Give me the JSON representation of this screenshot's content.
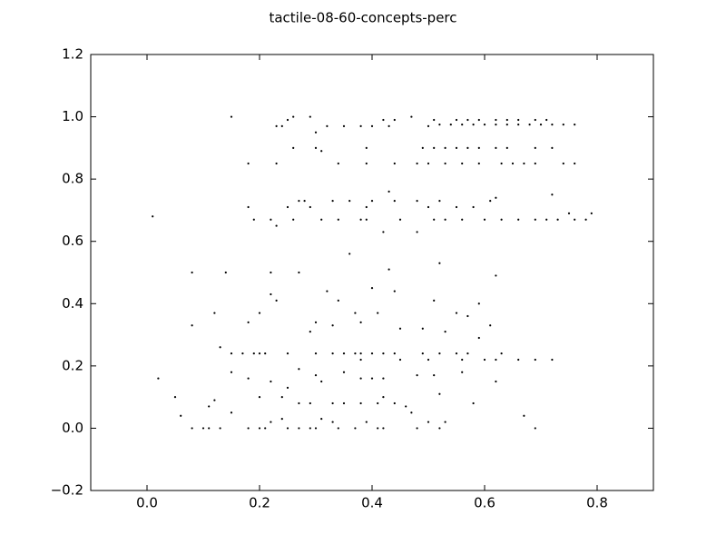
{
  "chart_data": {
    "type": "scatter",
    "title": "tactile-08-60-concepts-perc",
    "color": "#000000",
    "x": [
      0.15,
      0.23,
      0.24,
      0.25,
      0.26,
      0.29,
      0.3,
      0.32,
      0.35,
      0.38,
      0.4,
      0.42,
      0.43,
      0.44,
      0.47,
      0.5,
      0.51,
      0.52,
      0.54,
      0.56,
      0.58,
      0.6,
      0.62,
      0.64,
      0.66,
      0.68,
      0.7,
      0.72,
      0.74,
      0.76,
      0.55,
      0.57,
      0.59,
      0.62,
      0.64,
      0.66,
      0.69,
      0.71,
      0.26,
      0.3,
      0.31,
      0.39,
      0.49,
      0.51,
      0.53,
      0.55,
      0.57,
      0.59,
      0.62,
      0.64,
      0.69,
      0.72,
      0.18,
      0.23,
      0.34,
      0.39,
      0.44,
      0.48,
      0.5,
      0.53,
      0.56,
      0.59,
      0.63,
      0.65,
      0.67,
      0.69,
      0.74,
      0.76,
      0.18,
      0.25,
      0.27,
      0.28,
      0.29,
      0.33,
      0.36,
      0.39,
      0.4,
      0.43,
      0.44,
      0.48,
      0.5,
      0.52,
      0.55,
      0.58,
      0.61,
      0.62,
      0.72,
      0.75,
      0.79,
      0.01,
      0.19,
      0.22,
      0.23,
      0.26,
      0.31,
      0.34,
      0.38,
      0.39,
      0.42,
      0.45,
      0.48,
      0.51,
      0.53,
      0.56,
      0.6,
      0.63,
      0.66,
      0.69,
      0.71,
      0.73,
      0.76,
      0.78,
      0.36,
      0.52,
      0.43,
      0.62,
      0.08,
      0.14,
      0.22,
      0.27,
      0.32,
      0.4,
      0.44,
      0.22,
      0.23,
      0.34,
      0.3,
      0.37,
      0.41,
      0.51,
      0.55,
      0.59,
      0.57,
      0.12,
      0.08,
      0.2,
      0.18,
      0.45,
      0.49,
      0.53,
      0.29,
      0.33,
      0.38,
      0.61,
      0.59,
      0.13,
      0.15,
      0.17,
      0.19,
      0.2,
      0.21,
      0.25,
      0.3,
      0.33,
      0.35,
      0.37,
      0.38,
      0.4,
      0.42,
      0.44,
      0.49,
      0.52,
      0.55,
      0.57,
      0.63,
      0.38,
      0.45,
      0.5,
      0.56,
      0.6,
      0.62,
      0.66,
      0.69,
      0.72,
      0.15,
      0.18,
      0.22,
      0.25,
      0.27,
      0.3,
      0.31,
      0.35,
      0.38,
      0.4,
      0.42,
      0.48,
      0.51,
      0.56,
      0.62,
      0.02,
      0.05,
      0.12,
      0.2,
      0.24,
      0.27,
      0.29,
      0.33,
      0.35,
      0.38,
      0.41,
      0.42,
      0.44,
      0.46,
      0.52,
      0.58,
      0.11,
      0.06,
      0.08,
      0.1,
      0.11,
      0.13,
      0.15,
      0.18,
      0.2,
      0.21,
      0.22,
      0.24,
      0.25,
      0.27,
      0.29,
      0.3,
      0.31,
      0.33,
      0.34,
      0.37,
      0.39,
      0.41,
      0.42,
      0.47,
      0.48,
      0.5,
      0.52,
      0.53,
      0.67,
      0.69
    ],
    "y": [
      1.0,
      0.97,
      0.97,
      0.99,
      1.0,
      1.0,
      0.95,
      0.97,
      0.97,
      0.97,
      0.97,
      0.99,
      0.97,
      0.99,
      1.0,
      0.97,
      0.99,
      0.975,
      0.975,
      0.975,
      0.975,
      0.975,
      0.975,
      0.975,
      0.975,
      0.975,
      0.975,
      0.975,
      0.975,
      0.975,
      0.99,
      0.99,
      0.99,
      0.99,
      0.99,
      0.99,
      0.99,
      0.99,
      0.9,
      0.9,
      0.89,
      0.9,
      0.9,
      0.9,
      0.9,
      0.9,
      0.9,
      0.9,
      0.9,
      0.9,
      0.9,
      0.9,
      0.85,
      0.85,
      0.85,
      0.85,
      0.85,
      0.85,
      0.85,
      0.85,
      0.85,
      0.85,
      0.85,
      0.85,
      0.85,
      0.85,
      0.85,
      0.85,
      0.71,
      0.71,
      0.73,
      0.73,
      0.71,
      0.73,
      0.73,
      0.71,
      0.73,
      0.76,
      0.73,
      0.73,
      0.71,
      0.73,
      0.71,
      0.71,
      0.73,
      0.74,
      0.75,
      0.69,
      0.69,
      0.68,
      0.67,
      0.67,
      0.65,
      0.67,
      0.67,
      0.67,
      0.67,
      0.67,
      0.63,
      0.67,
      0.63,
      0.67,
      0.67,
      0.67,
      0.67,
      0.67,
      0.67,
      0.67,
      0.67,
      0.67,
      0.67,
      0.67,
      0.56,
      0.53,
      0.51,
      0.49,
      0.5,
      0.5,
      0.5,
      0.5,
      0.44,
      0.45,
      0.44,
      0.43,
      0.41,
      0.41,
      0.34,
      0.37,
      0.37,
      0.41,
      0.37,
      0.4,
      0.36,
      0.37,
      0.33,
      0.37,
      0.34,
      0.32,
      0.32,
      0.31,
      0.31,
      0.33,
      0.34,
      0.33,
      0.29,
      0.26,
      0.24,
      0.24,
      0.24,
      0.24,
      0.24,
      0.24,
      0.24,
      0.24,
      0.24,
      0.24,
      0.24,
      0.24,
      0.24,
      0.24,
      0.24,
      0.24,
      0.24,
      0.24,
      0.24,
      0.22,
      0.22,
      0.22,
      0.22,
      0.22,
      0.22,
      0.22,
      0.22,
      0.22,
      0.18,
      0.16,
      0.15,
      0.13,
      0.19,
      0.17,
      0.15,
      0.18,
      0.16,
      0.16,
      0.16,
      0.17,
      0.17,
      0.18,
      0.15,
      0.16,
      0.1,
      0.09,
      0.1,
      0.1,
      0.08,
      0.08,
      0.08,
      0.08,
      0.08,
      0.08,
      0.1,
      0.08,
      0.07,
      0.11,
      0.08,
      0.07,
      0.04,
      0.0,
      0.0,
      0.0,
      0.0,
      0.05,
      0.0,
      0.0,
      0.0,
      0.02,
      0.03,
      0.0,
      0.0,
      0.0,
      0.0,
      0.03,
      0.02,
      0.0,
      0.0,
      0.02,
      0.0,
      0.0,
      0.05,
      0.0,
      0.02,
      0.0,
      0.02,
      0.04,
      0.0
    ],
    "xlim": [
      -0.1,
      0.9
    ],
    "ylim": [
      -0.2,
      1.2
    ],
    "xticks": [
      {
        "value": 0,
        "label": "0.0"
      },
      0.2,
      0.4,
      0.6,
      0.8
    ],
    "yticks": [
      {
        "value": -0.2,
        "label": "−0.2"
      },
      {
        "value": 0,
        "label": "0.0"
      },
      0.2,
      0.4,
      0.6,
      0.8,
      {
        "value": 1,
        "label": "1.0"
      },
      1.2
    ]
  }
}
